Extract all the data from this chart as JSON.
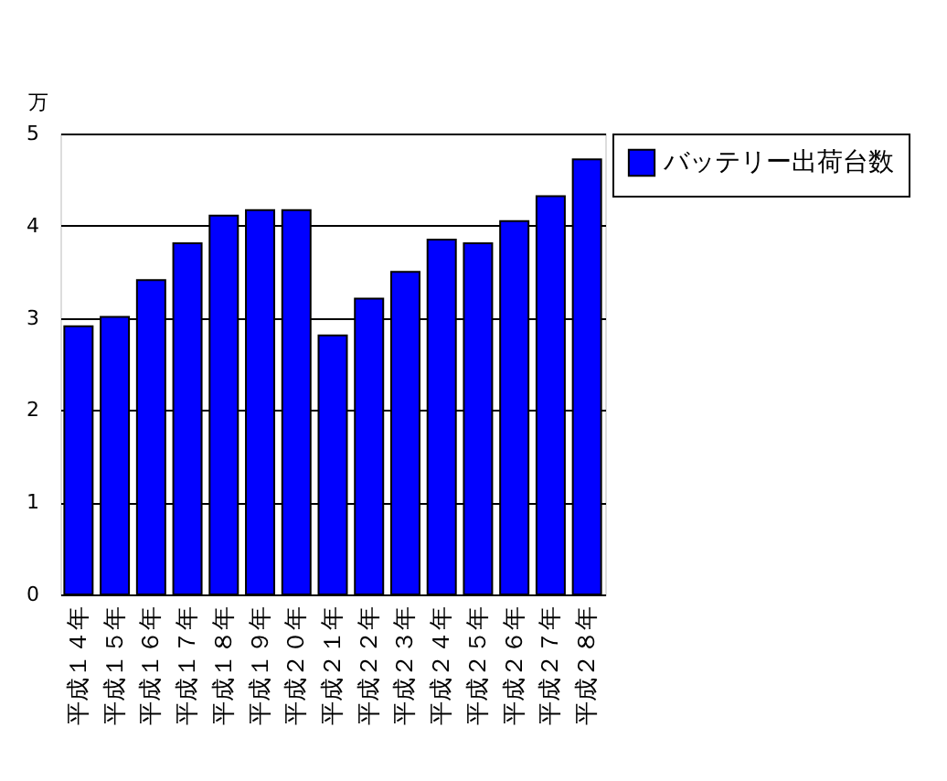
{
  "chart_data": {
    "type": "bar",
    "ylabel": "万",
    "categories": [
      "平成１４年",
      "平成１５年",
      "平成１６年",
      "平成１７年",
      "平成１８年",
      "平成１９年",
      "平成２０年",
      "平成２１年",
      "平成２２年",
      "平成２３年",
      "平成２４年",
      "平成２５年",
      "平成２６年",
      "平成２７年",
      "平成２８年"
    ],
    "series": [
      {
        "name": "バッテリー出荷台数",
        "color": "#0000ff",
        "values": [
          2.91,
          3.01,
          3.41,
          3.81,
          4.11,
          4.17,
          4.17,
          2.81,
          3.21,
          3.5,
          3.85,
          3.81,
          4.05,
          4.32,
          4.72
        ]
      }
    ],
    "ylim": [
      0,
      5
    ],
    "yticks": [
      0,
      1,
      2,
      3,
      4,
      5
    ],
    "grid": "y",
    "legend": "top right"
  }
}
